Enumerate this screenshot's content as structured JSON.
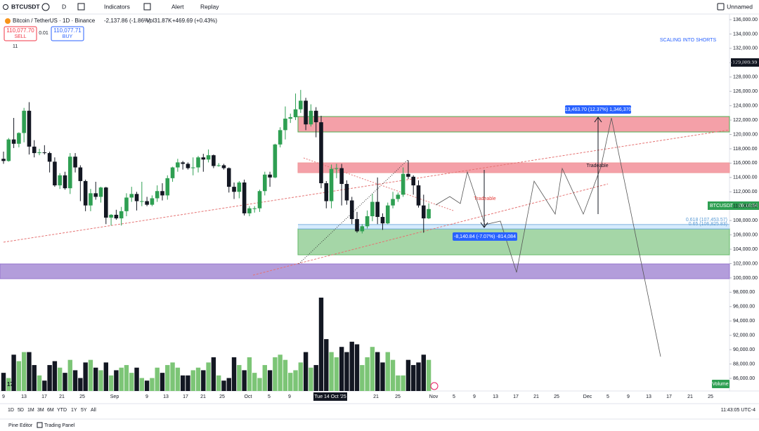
{
  "toolbar": {
    "symbol": "BTCUSDT",
    "interval": "D",
    "indicators": "Indicators",
    "alert": "Alert",
    "replay": "Replay",
    "layout": "Unnamed"
  },
  "legend": {
    "title": "Bitcoin / TetherUS · 1D · Binance",
    "change": "-2,137.86 (-1.86%)",
    "volume": "Vol31.87K",
    "volume_change": "+469.69 (+0.43%)",
    "sell_price": "110,077.70",
    "sell": "SELL",
    "spread": "0.01",
    "buy_price": "110,077.71",
    "buy": "BUY",
    "indicator_count": "11"
  },
  "chart_data": {
    "type": "candlestick",
    "up_color": "#2e9f52",
    "down_color": "#131722",
    "volume_up_color": "#7cc576",
    "volume_down_color": "#131722",
    "ylim": [
      84240,
      136780
    ],
    "yticks": [
      {
        "value": 136000,
        "label": "136,000.00"
      },
      {
        "value": 134000,
        "label": "134,000.00"
      },
      {
        "value": 132000,
        "label": "132,000.00"
      },
      {
        "value": 130000,
        "label": "130,000.00"
      },
      {
        "value": 128000,
        "label": "128,000.00"
      },
      {
        "value": 126000,
        "label": "126,000.00"
      },
      {
        "value": 124000,
        "label": "124,000.00"
      },
      {
        "value": 122000,
        "label": "122,000.00"
      },
      {
        "value": 120000,
        "label": "120,000.00"
      },
      {
        "value": 118000,
        "label": "118,000.00"
      },
      {
        "value": 116000,
        "label": "116,000.00"
      },
      {
        "value": 114000,
        "label": "114,000.00"
      },
      {
        "value": 112000,
        "label": "112,000.00"
      },
      {
        "value": 110000,
        "label": "110,000.00"
      },
      {
        "value": 108000,
        "label": "108,000.00"
      },
      {
        "value": 106000,
        "label": "106,000.00"
      },
      {
        "value": 104000,
        "label": "104,000.00"
      },
      {
        "value": 102000,
        "label": "102,000.00"
      },
      {
        "value": 100000,
        "label": "100,000.00"
      },
      {
        "value": 98000,
        "label": "98,000.00"
      },
      {
        "value": 96000,
        "label": "96,000.00"
      },
      {
        "value": 94000,
        "label": "94,000.00"
      },
      {
        "value": 92000,
        "label": "92,000.00"
      },
      {
        "value": 90000,
        "label": "90,000.00"
      },
      {
        "value": 88000,
        "label": "88,000.00"
      },
      {
        "value": 86000,
        "label": "86,000.00"
      }
    ],
    "x_labels": [
      "9",
      "13",
      "17",
      "21",
      "25",
      "Sep",
      "9",
      "13",
      "17",
      "21",
      "25",
      "Oct",
      "5",
      "9",
      "21",
      "25",
      "Nov",
      "5",
      "9",
      "13",
      "17",
      "21",
      "25",
      "Dec",
      "5",
      "9",
      "13",
      "17",
      "21",
      "25"
    ],
    "crosshair_date": "Tue 14 Oct '25",
    "crosshair_price": "129,889.99",
    "last_symbol": "BTCUSDT",
    "countdown": "08:16:54",
    "candles": [
      [
        116600,
        117600,
        115900,
        116300
      ],
      [
        116300,
        119500,
        116200,
        119300
      ],
      [
        119300,
        122300,
        118100,
        118700
      ],
      [
        118700,
        120300,
        118200,
        120200
      ],
      [
        120200,
        123700,
        118900,
        123300
      ],
      [
        123300,
        124500,
        117200,
        118300
      ],
      [
        118300,
        119200,
        116800,
        117400
      ],
      [
        117400,
        118000,
        117100,
        117500
      ],
      [
        117500,
        118500,
        117200,
        117400
      ],
      [
        117400,
        117600,
        114700,
        116200
      ],
      [
        116200,
        116800,
        112700,
        112900
      ],
      [
        112900,
        114600,
        112400,
        114300
      ],
      [
        114300,
        114800,
        112300,
        112500
      ],
      [
        112500,
        117400,
        111700,
        116900
      ],
      [
        116900,
        117400,
        114700,
        115400
      ],
      [
        115400,
        115700,
        110700,
        113500
      ],
      [
        113500,
        113700,
        109300,
        110100
      ],
      [
        110100,
        112400,
        109300,
        111800
      ],
      [
        111800,
        113400,
        110900,
        111300
      ],
      [
        111300,
        112700,
        110500,
        112600
      ],
      [
        112600,
        112700,
        107500,
        108400
      ],
      [
        108400,
        108900,
        107300,
        108800
      ],
      [
        108800,
        109500,
        108100,
        108300
      ],
      [
        108300,
        109900,
        107300,
        109300
      ],
      [
        109300,
        111800,
        108600,
        111200
      ],
      [
        111200,
        112700,
        110600,
        111700
      ],
      [
        111700,
        112000,
        109400,
        110700
      ],
      [
        110700,
        113400,
        110000,
        110700
      ],
      [
        110700,
        111300,
        110000,
        110200
      ],
      [
        110200,
        111500,
        110000,
        111100
      ],
      [
        111100,
        112900,
        110600,
        112100
      ],
      [
        112100,
        113200,
        110800,
        111500
      ],
      [
        111500,
        114300,
        110900,
        113900
      ],
      [
        113900,
        115500,
        113400,
        115400
      ],
      [
        115400,
        116600,
        114800,
        116100
      ],
      [
        116100,
        116300,
        115100,
        115900
      ],
      [
        115900,
        116100,
        115100,
        115300
      ],
      [
        115300,
        116800,
        114300,
        115400
      ],
      [
        115400,
        117000,
        114700,
        116800
      ],
      [
        116800,
        117300,
        114800,
        116500
      ],
      [
        116500,
        117900,
        116100,
        117100
      ],
      [
        117100,
        117200,
        115300,
        115600
      ],
      [
        115600,
        116000,
        115500,
        115700
      ],
      [
        115700,
        115900,
        115100,
        115300
      ],
      [
        115300,
        115400,
        111900,
        112700
      ],
      [
        112700,
        113300,
        111000,
        112000
      ],
      [
        112000,
        113500,
        111100,
        113300
      ],
      [
        113300,
        113700,
        108700,
        109000
      ],
      [
        109000,
        110000,
        108600,
        109700
      ],
      [
        109700,
        110000,
        109100,
        109700
      ],
      [
        109700,
        112300,
        109200,
        112100
      ],
      [
        112100,
        114800,
        111500,
        114400
      ],
      [
        114400,
        114800,
        112700,
        114000
      ],
      [
        114000,
        118700,
        113900,
        118600
      ],
      [
        118600,
        121000,
        118200,
        120600
      ],
      [
        120600,
        123900,
        119300,
        122200
      ],
      [
        122200,
        122900,
        121600,
        122400
      ],
      [
        122400,
        125700,
        122000,
        123500
      ],
      [
        123500,
        126200,
        123000,
        124700
      ],
      [
        124700,
        125100,
        120600,
        121400
      ],
      [
        121400,
        124200,
        121100,
        123300
      ],
      [
        123300,
        123800,
        119600,
        121700
      ],
      [
        121700,
        122600,
        112500,
        113200
      ],
      [
        113200,
        113500,
        109700,
        110700
      ],
      [
        110700,
        115800,
        109700,
        115200
      ],
      [
        115200,
        115900,
        113900,
        115300
      ],
      [
        115300,
        115900,
        110100,
        113100
      ],
      [
        113100,
        113600,
        110200,
        110800
      ],
      [
        110800,
        111300,
        107500,
        108200
      ],
      [
        108200,
        109200,
        106300,
        106500
      ],
      [
        106500,
        107500,
        106200,
        107200
      ],
      [
        107200,
        109400,
        106900,
        108600
      ],
      [
        108600,
        111700,
        107900,
        110600
      ],
      [
        110600,
        114000,
        107500,
        108500
      ],
      [
        108500,
        109000,
        106700,
        107600
      ],
      [
        107600,
        110500,
        107500,
        110100
      ],
      [
        110100,
        112000,
        109700,
        111000
      ],
      [
        111000,
        111900,
        110600,
        111600
      ],
      [
        111600,
        115400,
        111300,
        114500
      ],
      [
        114500,
        116400,
        113800,
        114100
      ],
      [
        114100,
        114300,
        111600,
        112900
      ],
      [
        112900,
        113600,
        109800,
        110100
      ],
      [
        110100,
        111600,
        106300,
        108300
      ],
      [
        108300,
        110400,
        108200,
        109600
      ]
    ],
    "volume": [
      14,
      10,
      28,
      23,
      30,
      30,
      20,
      12,
      8,
      20,
      23,
      18,
      14,
      24,
      16,
      10,
      22,
      24,
      18,
      16,
      22,
      12,
      16,
      18,
      20,
      14,
      18,
      10,
      8,
      10,
      18,
      14,
      20,
      22,
      18,
      12,
      12,
      16,
      18,
      16,
      22,
      26,
      12,
      8,
      10,
      26,
      20,
      16,
      26,
      14,
      10,
      20,
      16,
      26,
      28,
      24,
      14,
      16,
      22,
      30,
      18,
      20,
      72,
      40,
      30,
      26,
      34,
      30,
      38,
      36,
      20,
      26,
      34,
      30,
      22,
      30,
      24,
      12,
      12,
      24,
      20,
      22,
      28,
      24
    ],
    "volume_label": "Volume"
  },
  "annotations": {
    "strategy": "SCALING INTO SHORTS",
    "target_up": "13,463.70 (12.37%) 1,346,370",
    "tradeable_up": "Tradeable",
    "tradeable_down": "Tradeable",
    "target_down": "-8,140.84 (-7.07%) -814,084",
    "fib_618": "0.618 (107,453.57)",
    "fib_65": "0.65 (106,825.83)"
  },
  "bottom_bar": {
    "ranges": [
      "1D",
      "5D",
      "1M",
      "3M",
      "6M",
      "YTD",
      "1Y",
      "5Y",
      "All"
    ],
    "clock": "11:43:05 UTC-4"
  },
  "footer": {
    "pine": "Pine Editor",
    "panel": "Trading Panel"
  }
}
